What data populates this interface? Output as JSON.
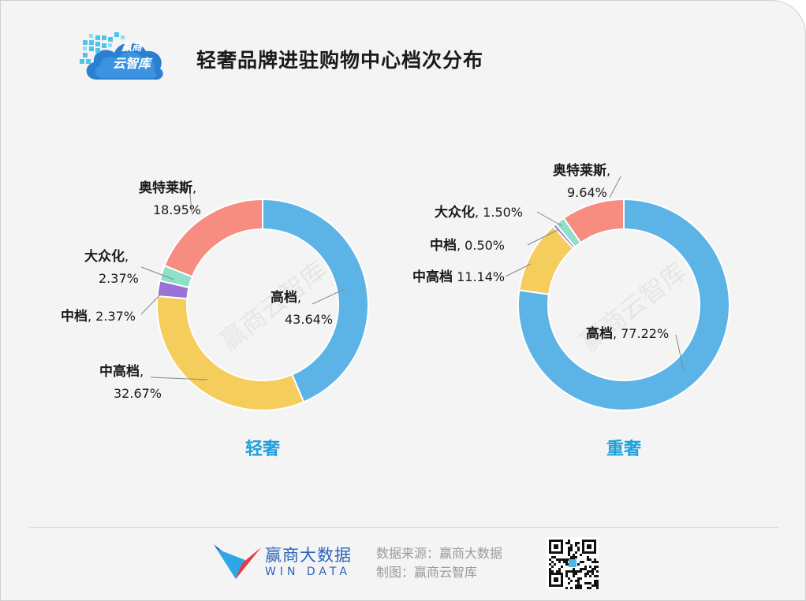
{
  "header": {
    "title": "轻奢品牌进驻购物中心档次分布",
    "logo_line1": "赢商",
    "logo_line2": "云智库"
  },
  "watermark": "赢商云智库",
  "footer": {
    "brand_name": "赢商大数据",
    "brand_sub": "WIN DATA",
    "source": "数据来源：赢商大数据",
    "made_by": "制图：赢商云智库"
  },
  "colors": {
    "高档": "#5cb4e6",
    "中高档": "#f5cd5c",
    "中档": "#9b72d6",
    "大众化": "#8ee0c8",
    "奥特莱斯": "#f78c80",
    "caption": "#1ea0dc"
  },
  "chart_data": [
    {
      "type": "pie",
      "style": "donut",
      "caption": "轻奢",
      "slices": [
        {
          "name": "高档",
          "value": 43.64,
          "label": "43.64%"
        },
        {
          "name": "中高档",
          "value": 32.67,
          "label": "32.67%"
        },
        {
          "name": "中档",
          "value": 2.37,
          "label": "2.37%"
        },
        {
          "name": "大众化",
          "value": 2.37,
          "label": "2.37%"
        },
        {
          "name": "奥特莱斯",
          "value": 18.95,
          "label": "18.95%"
        }
      ]
    },
    {
      "type": "pie",
      "style": "donut",
      "caption": "重奢",
      "slices": [
        {
          "name": "高档",
          "value": 77.22,
          "label": "77.22%"
        },
        {
          "name": "中高档",
          "value": 11.14,
          "label": "11.14%"
        },
        {
          "name": "中档",
          "value": 0.5,
          "label": "0.50%"
        },
        {
          "name": "大众化",
          "value": 1.5,
          "label": "1.50%"
        },
        {
          "name": "奥特莱斯",
          "value": 9.64,
          "label": "9.64%"
        }
      ]
    }
  ]
}
